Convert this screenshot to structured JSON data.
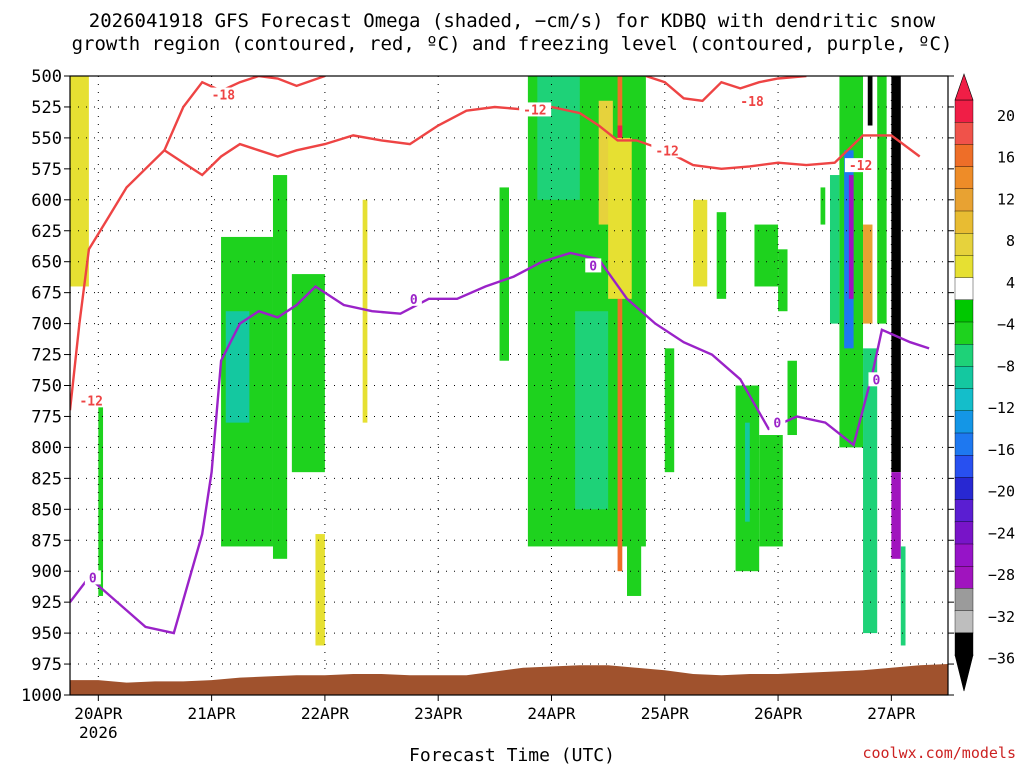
{
  "title_line1": "2026041918 GFS Forecast Omega (shaded, −cm/s) for KDBQ with dendritic snow",
  "title_line2": "growth region (contoured, red, ºC) and freezing level (contoured, purple, ºC)",
  "xlabel": "Forecast Time (UTC)",
  "credit": "coolwx.com/models",
  "colors": {
    "snow_contour": "#ee4444",
    "freezing_contour": "#9a22c8",
    "terrain": "#a0522d",
    "grid": "#000000"
  },
  "chart_data": {
    "type": "heatmap",
    "y_axis": {
      "label": "",
      "unit": "hPa",
      "inverted": true,
      "range": [
        1000,
        500
      ],
      "ticks": [
        500,
        525,
        550,
        575,
        600,
        625,
        650,
        675,
        700,
        725,
        750,
        775,
        800,
        825,
        850,
        875,
        900,
        925,
        950,
        975,
        1000
      ]
    },
    "x_axis": {
      "label": "Forecast Time (UTC)",
      "range": [
        "2026-04-19T18",
        "2026-04-27T12"
      ],
      "ticks": [
        {
          "label": "20APR",
          "sublabel": "2026",
          "t": "2026-04-20T00"
        },
        {
          "label": "21APR",
          "t": "2026-04-21T00"
        },
        {
          "label": "22APR",
          "t": "2026-04-22T00"
        },
        {
          "label": "23APR",
          "t": "2026-04-23T00"
        },
        {
          "label": "24APR",
          "t": "2026-04-24T00"
        },
        {
          "label": "25APR",
          "t": "2026-04-25T00"
        },
        {
          "label": "26APR",
          "t": "2026-04-26T00"
        },
        {
          "label": "27APR",
          "t": "2026-04-27T00"
        }
      ]
    },
    "grid": "dotted",
    "colorbar": {
      "labels": [
        "20",
        "16",
        "12",
        "8",
        "4",
        "−4",
        "−8",
        "−12",
        "−16",
        "−20",
        "−24",
        "−28",
        "−32",
        "−36"
      ],
      "bins": [
        {
          "min": 20,
          "color": "#f01e46"
        },
        {
          "min": 18,
          "color": "#f0524a"
        },
        {
          "min": 16,
          "color": "#ee6e28"
        },
        {
          "min": 14,
          "color": "#ee8c28"
        },
        {
          "min": 12,
          "color": "#e8a232"
        },
        {
          "min": 10,
          "color": "#e8bc32"
        },
        {
          "min": 8,
          "color": "#e6d23c"
        },
        {
          "min": 6,
          "color": "#e6e032"
        },
        {
          "min": 4,
          "color": "#ffffff"
        },
        {
          "min": -4,
          "color": "#00c800"
        },
        {
          "min": -6,
          "color": "#1ed21e"
        },
        {
          "min": -8,
          "color": "#1ed278"
        },
        {
          "min": -10,
          "color": "#14c8a0"
        },
        {
          "min": -12,
          "color": "#14beca"
        },
        {
          "min": -14,
          "color": "#1496e6"
        },
        {
          "min": -16,
          "color": "#1e78f0"
        },
        {
          "min": -18,
          "color": "#2850f0"
        },
        {
          "min": -20,
          "color": "#2828d2"
        },
        {
          "min": -22,
          "color": "#5a1ed2"
        },
        {
          "min": -24,
          "color": "#7814c8"
        },
        {
          "min": -26,
          "color": "#9614c8"
        },
        {
          "min": -28,
          "color": "#a014be"
        },
        {
          "min": -30,
          "color": "#9b9b9b"
        },
        {
          "min": -32,
          "color": "#bebebe"
        },
        {
          "min": -36,
          "color": "#000000"
        }
      ]
    },
    "omega_regions": [
      {
        "t0": "2026-04-19T18",
        "t1": "2026-04-19T22",
        "p_top": 500,
        "p_bot": 670,
        "value": 6
      },
      {
        "t0": "2026-04-20T00",
        "t1": "2026-04-20T01",
        "p_top": 760,
        "p_bot": 920,
        "value": -6
      },
      {
        "t0": "2026-04-21T02",
        "t1": "2026-04-21T13",
        "p_top": 630,
        "p_bot": 880,
        "value": -6
      },
      {
        "t0": "2026-04-21T03",
        "t1": "2026-04-21T08",
        "p_top": 690,
        "p_bot": 780,
        "value": -10
      },
      {
        "t0": "2026-04-21T13",
        "t1": "2026-04-21T16",
        "p_top": 580,
        "p_bot": 890,
        "value": -6
      },
      {
        "t0": "2026-04-21T17",
        "t1": "2026-04-22T00",
        "p_top": 660,
        "p_bot": 820,
        "value": -6
      },
      {
        "t0": "2026-04-21T22",
        "t1": "2026-04-22T00",
        "p_top": 870,
        "p_bot": 960,
        "value": 6
      },
      {
        "t0": "2026-04-22T08",
        "t1": "2026-04-22T09",
        "p_top": 600,
        "p_bot": 780,
        "value": 6
      },
      {
        "t0": "2026-04-23T13",
        "t1": "2026-04-23T15",
        "p_top": 590,
        "p_bot": 730,
        "value": -6
      },
      {
        "t0": "2026-04-23T19",
        "t1": "2026-04-24T20",
        "p_top": 500,
        "p_bot": 880,
        "value": -6
      },
      {
        "t0": "2026-04-23T21",
        "t1": "2026-04-24T06",
        "p_top": 500,
        "p_bot": 600,
        "value": -8
      },
      {
        "t0": "2026-04-24T05",
        "t1": "2026-04-24T12",
        "p_top": 690,
        "p_bot": 850,
        "value": -8
      },
      {
        "t0": "2026-04-24T10",
        "t1": "2026-04-24T13",
        "p_top": 520,
        "p_bot": 620,
        "value": 8
      },
      {
        "t0": "2026-04-24T14",
        "t1": "2026-04-24T15",
        "p_top": 500,
        "p_bot": 900,
        "value": 16
      },
      {
        "t0": "2026-04-24T14",
        "t1": "2026-04-24T15",
        "p_top": 540,
        "p_bot": 570,
        "value": 20
      },
      {
        "t0": "2026-04-24T16",
        "t1": "2026-04-24T19",
        "p_top": 650,
        "p_bot": 920,
        "value": -6
      },
      {
        "t0": "2026-04-24T12",
        "t1": "2026-04-24T17",
        "p_top": 550,
        "p_bot": 680,
        "value": 6
      },
      {
        "t0": "2026-04-25T00",
        "t1": "2026-04-25T02",
        "p_top": 720,
        "p_bot": 820,
        "value": -6
      },
      {
        "t0": "2026-04-25T06",
        "t1": "2026-04-25T09",
        "p_top": 600,
        "p_bot": 670,
        "value": 6
      },
      {
        "t0": "2026-04-25T11",
        "t1": "2026-04-25T13",
        "p_top": 610,
        "p_bot": 680,
        "value": -6
      },
      {
        "t0": "2026-04-25T15",
        "t1": "2026-04-25T20",
        "p_top": 750,
        "p_bot": 900,
        "value": -6
      },
      {
        "t0": "2026-04-25T17",
        "t1": "2026-04-25T18",
        "p_top": 780,
        "p_bot": 860,
        "value": -10
      },
      {
        "t0": "2026-04-25T19",
        "t1": "2026-04-26T00",
        "p_top": 620,
        "p_bot": 670,
        "value": -6
      },
      {
        "t0": "2026-04-25T20",
        "t1": "2026-04-26T01",
        "p_top": 790,
        "p_bot": 880,
        "value": -6
      },
      {
        "t0": "2026-04-26T00",
        "t1": "2026-04-26T02",
        "p_top": 640,
        "p_bot": 690,
        "value": -6
      },
      {
        "t0": "2026-04-26T02",
        "t1": "2026-04-26T04",
        "p_top": 730,
        "p_bot": 790,
        "value": -6
      },
      {
        "t0": "2026-04-26T09",
        "t1": "2026-04-26T10",
        "p_top": 590,
        "p_bot": 620,
        "value": -6
      },
      {
        "t0": "2026-04-26T11",
        "t1": "2026-04-26T13",
        "p_top": 580,
        "p_bot": 700,
        "value": -8
      },
      {
        "t0": "2026-04-26T13",
        "t1": "2026-04-26T18",
        "p_top": 500,
        "p_bot": 800,
        "value": -6
      },
      {
        "t0": "2026-04-26T14",
        "t1": "2026-04-26T16",
        "p_top": 560,
        "p_bot": 720,
        "value": -16
      },
      {
        "t0": "2026-04-26T15",
        "t1": "2026-04-26T16",
        "p_top": 580,
        "p_bot": 680,
        "value": -28
      },
      {
        "t0": "2026-04-26T18",
        "t1": "2026-04-26T20",
        "p_top": 620,
        "p_bot": 700,
        "value": 12
      },
      {
        "t0": "2026-04-26T18",
        "t1": "2026-04-26T21",
        "p_top": 720,
        "p_bot": 950,
        "value": -8
      },
      {
        "t0": "2026-04-26T19",
        "t1": "2026-04-26T20",
        "p_top": 500,
        "p_bot": 540,
        "value": -36
      },
      {
        "t0": "2026-04-26T21",
        "t1": "2026-04-26T23",
        "p_top": 500,
        "p_bot": 700,
        "value": -6
      },
      {
        "t0": "2026-04-27T00",
        "t1": "2026-04-27T02",
        "p_top": 500,
        "p_bot": 820,
        "value": -36
      },
      {
        "t0": "2026-04-27T00",
        "t1": "2026-04-27T02",
        "p_top": 820,
        "p_bot": 890,
        "value": -28
      },
      {
        "t0": "2026-04-27T02",
        "t1": "2026-04-27T03",
        "p_top": 880,
        "p_bot": 960,
        "value": -8
      }
    ],
    "series": [
      {
        "name": "-18",
        "color": "#ee4444",
        "points": [
          [
            "2026-04-20T14",
            560
          ],
          [
            "2026-04-20T18",
            525
          ],
          [
            "2026-04-20T22",
            505
          ],
          [
            "2026-04-21T02",
            512
          ],
          [
            "2026-04-21T06",
            505
          ],
          [
            "2026-04-21T10",
            500
          ],
          [
            "2026-04-21T14",
            502
          ],
          [
            "2026-04-21T18",
            508
          ],
          [
            "2026-04-22T00",
            500
          ]
        ]
      },
      {
        "name": "-18",
        "color": "#ee4444",
        "points": [
          [
            "2026-04-24T20",
            500
          ],
          [
            "2026-04-25T00",
            505
          ],
          [
            "2026-04-25T04",
            518
          ],
          [
            "2026-04-25T08",
            520
          ],
          [
            "2026-04-25T12",
            505
          ],
          [
            "2026-04-25T16",
            510
          ],
          [
            "2026-04-25T20",
            505
          ],
          [
            "2026-04-26T00",
            502
          ],
          [
            "2026-04-26T06",
            500
          ]
        ]
      },
      {
        "name": "-12",
        "color": "#ee4444",
        "points": [
          [
            "2026-04-19T18",
            770
          ],
          [
            "2026-04-19T20",
            700
          ],
          [
            "2026-04-19T22",
            640
          ],
          [
            "2026-04-20T02",
            615
          ],
          [
            "2026-04-20T06",
            590
          ],
          [
            "2026-04-20T10",
            575
          ],
          [
            "2026-04-20T14",
            560
          ],
          [
            "2026-04-20T18",
            570
          ],
          [
            "2026-04-20T22",
            580
          ],
          [
            "2026-04-21T02",
            565
          ],
          [
            "2026-04-21T06",
            555
          ],
          [
            "2026-04-21T10",
            560
          ],
          [
            "2026-04-21T14",
            565
          ],
          [
            "2026-04-21T18",
            560
          ],
          [
            "2026-04-22T00",
            555
          ],
          [
            "2026-04-22T06",
            548
          ],
          [
            "2026-04-22T12",
            552
          ],
          [
            "2026-04-22T18",
            555
          ],
          [
            "2026-04-23T00",
            540
          ],
          [
            "2026-04-23T06",
            528
          ],
          [
            "2026-04-23T12",
            525
          ],
          [
            "2026-04-23T18",
            527
          ],
          [
            "2026-04-24T00",
            525
          ],
          [
            "2026-04-24T06",
            530
          ],
          [
            "2026-04-24T10",
            540
          ],
          [
            "2026-04-24T14",
            552
          ],
          [
            "2026-04-24T18",
            552
          ],
          [
            "2026-04-25T00",
            560
          ],
          [
            "2026-04-25T06",
            572
          ],
          [
            "2026-04-25T12",
            575
          ],
          [
            "2026-04-25T18",
            573
          ],
          [
            "2026-04-26T00",
            570
          ],
          [
            "2026-04-26T06",
            572
          ],
          [
            "2026-04-26T12",
            570
          ],
          [
            "2026-04-26T18",
            548
          ],
          [
            "2026-04-27T00",
            548
          ],
          [
            "2026-04-27T06",
            565
          ]
        ]
      },
      {
        "name": "0",
        "color": "#9a22c8",
        "points": [
          [
            "2026-04-19T18",
            925
          ],
          [
            "2026-04-19T22",
            905
          ],
          [
            "2026-04-20T04",
            925
          ],
          [
            "2026-04-20T10",
            945
          ],
          [
            "2026-04-20T16",
            950
          ],
          [
            "2026-04-20T22",
            870
          ],
          [
            "2026-04-21T00",
            820
          ],
          [
            "2026-04-21T02",
            730
          ],
          [
            "2026-04-21T06",
            700
          ],
          [
            "2026-04-21T10",
            690
          ],
          [
            "2026-04-21T14",
            695
          ],
          [
            "2026-04-21T18",
            685
          ],
          [
            "2026-04-21T22",
            670
          ],
          [
            "2026-04-22T04",
            685
          ],
          [
            "2026-04-22T10",
            690
          ],
          [
            "2026-04-22T16",
            692
          ],
          [
            "2026-04-22T22",
            680
          ],
          [
            "2026-04-23T04",
            680
          ],
          [
            "2026-04-23T10",
            670
          ],
          [
            "2026-04-23T16",
            662
          ],
          [
            "2026-04-23T22",
            650
          ],
          [
            "2026-04-24T04",
            643
          ],
          [
            "2026-04-24T10",
            648
          ],
          [
            "2026-04-24T16",
            680
          ],
          [
            "2026-04-24T22",
            700
          ],
          [
            "2026-04-25T04",
            715
          ],
          [
            "2026-04-25T10",
            725
          ],
          [
            "2026-04-25T16",
            745
          ],
          [
            "2026-04-25T22",
            785
          ],
          [
            "2026-04-26T04",
            775
          ],
          [
            "2026-04-26T10",
            780
          ],
          [
            "2026-04-26T16",
            798
          ],
          [
            "2026-04-26T20",
            740
          ],
          [
            "2026-04-26T22",
            705
          ],
          [
            "2026-04-27T04",
            715
          ],
          [
            "2026-04-27T08",
            720
          ]
        ]
      }
    ],
    "contour_labels": [
      {
        "text": "-18",
        "t": "2026-04-21T00",
        "p": 515,
        "color": "#ee4444"
      },
      {
        "text": "-18",
        "t": "2026-04-25T16",
        "p": 520,
        "color": "#ee4444"
      },
      {
        "text": "-12",
        "t": "2026-04-23T18",
        "p": 527,
        "color": "#ee4444"
      },
      {
        "text": "-12",
        "t": "2026-04-24T22",
        "p": 560,
        "color": "#ee4444"
      },
      {
        "text": "-12",
        "t": "2026-04-26T15",
        "p": 572,
        "color": "#ee4444"
      },
      {
        "text": "-12",
        "t": "2026-04-19T20",
        "p": 762,
        "color": "#ee4444"
      },
      {
        "text": "0",
        "t": "2026-04-22T18",
        "p": 680,
        "color": "#9a22c8"
      },
      {
        "text": "0",
        "t": "2026-04-24T08",
        "p": 653,
        "color": "#9a22c8"
      },
      {
        "text": "0",
        "t": "2026-04-25T23",
        "p": 780,
        "color": "#9a22c8"
      },
      {
        "text": "0",
        "t": "2026-04-26T20",
        "p": 745,
        "color": "#9a22c8"
      },
      {
        "text": "0",
        "t": "2026-04-19T22",
        "p": 905,
        "color": "#9a22c8"
      }
    ],
    "terrain": [
      [
        "2026-04-19T18",
        988
      ],
      [
        "2026-04-20T00",
        988
      ],
      [
        "2026-04-20T06",
        990
      ],
      [
        "2026-04-20T12",
        989
      ],
      [
        "2026-04-20T18",
        989
      ],
      [
        "2026-04-21T00",
        988
      ],
      [
        "2026-04-21T06",
        986
      ],
      [
        "2026-04-21T12",
        985
      ],
      [
        "2026-04-21T18",
        984
      ],
      [
        "2026-04-22T00",
        984
      ],
      [
        "2026-04-22T06",
        983
      ],
      [
        "2026-04-22T12",
        983
      ],
      [
        "2026-04-22T18",
        984
      ],
      [
        "2026-04-23T00",
        984
      ],
      [
        "2026-04-23T06",
        984
      ],
      [
        "2026-04-23T12",
        981
      ],
      [
        "2026-04-23T18",
        978
      ],
      [
        "2026-04-24T00",
        977
      ],
      [
        "2026-04-24T06",
        976
      ],
      [
        "2026-04-24T12",
        976
      ],
      [
        "2026-04-24T18",
        978
      ],
      [
        "2026-04-25T00",
        980
      ],
      [
        "2026-04-25T06",
        983
      ],
      [
        "2026-04-25T12",
        984
      ],
      [
        "2026-04-25T18",
        983
      ],
      [
        "2026-04-26T00",
        983
      ],
      [
        "2026-04-26T06",
        982
      ],
      [
        "2026-04-26T12",
        981
      ],
      [
        "2026-04-26T18",
        980
      ],
      [
        "2026-04-27T00",
        978
      ],
      [
        "2026-04-27T06",
        976
      ],
      [
        "2026-04-27T12",
        975
      ]
    ]
  }
}
